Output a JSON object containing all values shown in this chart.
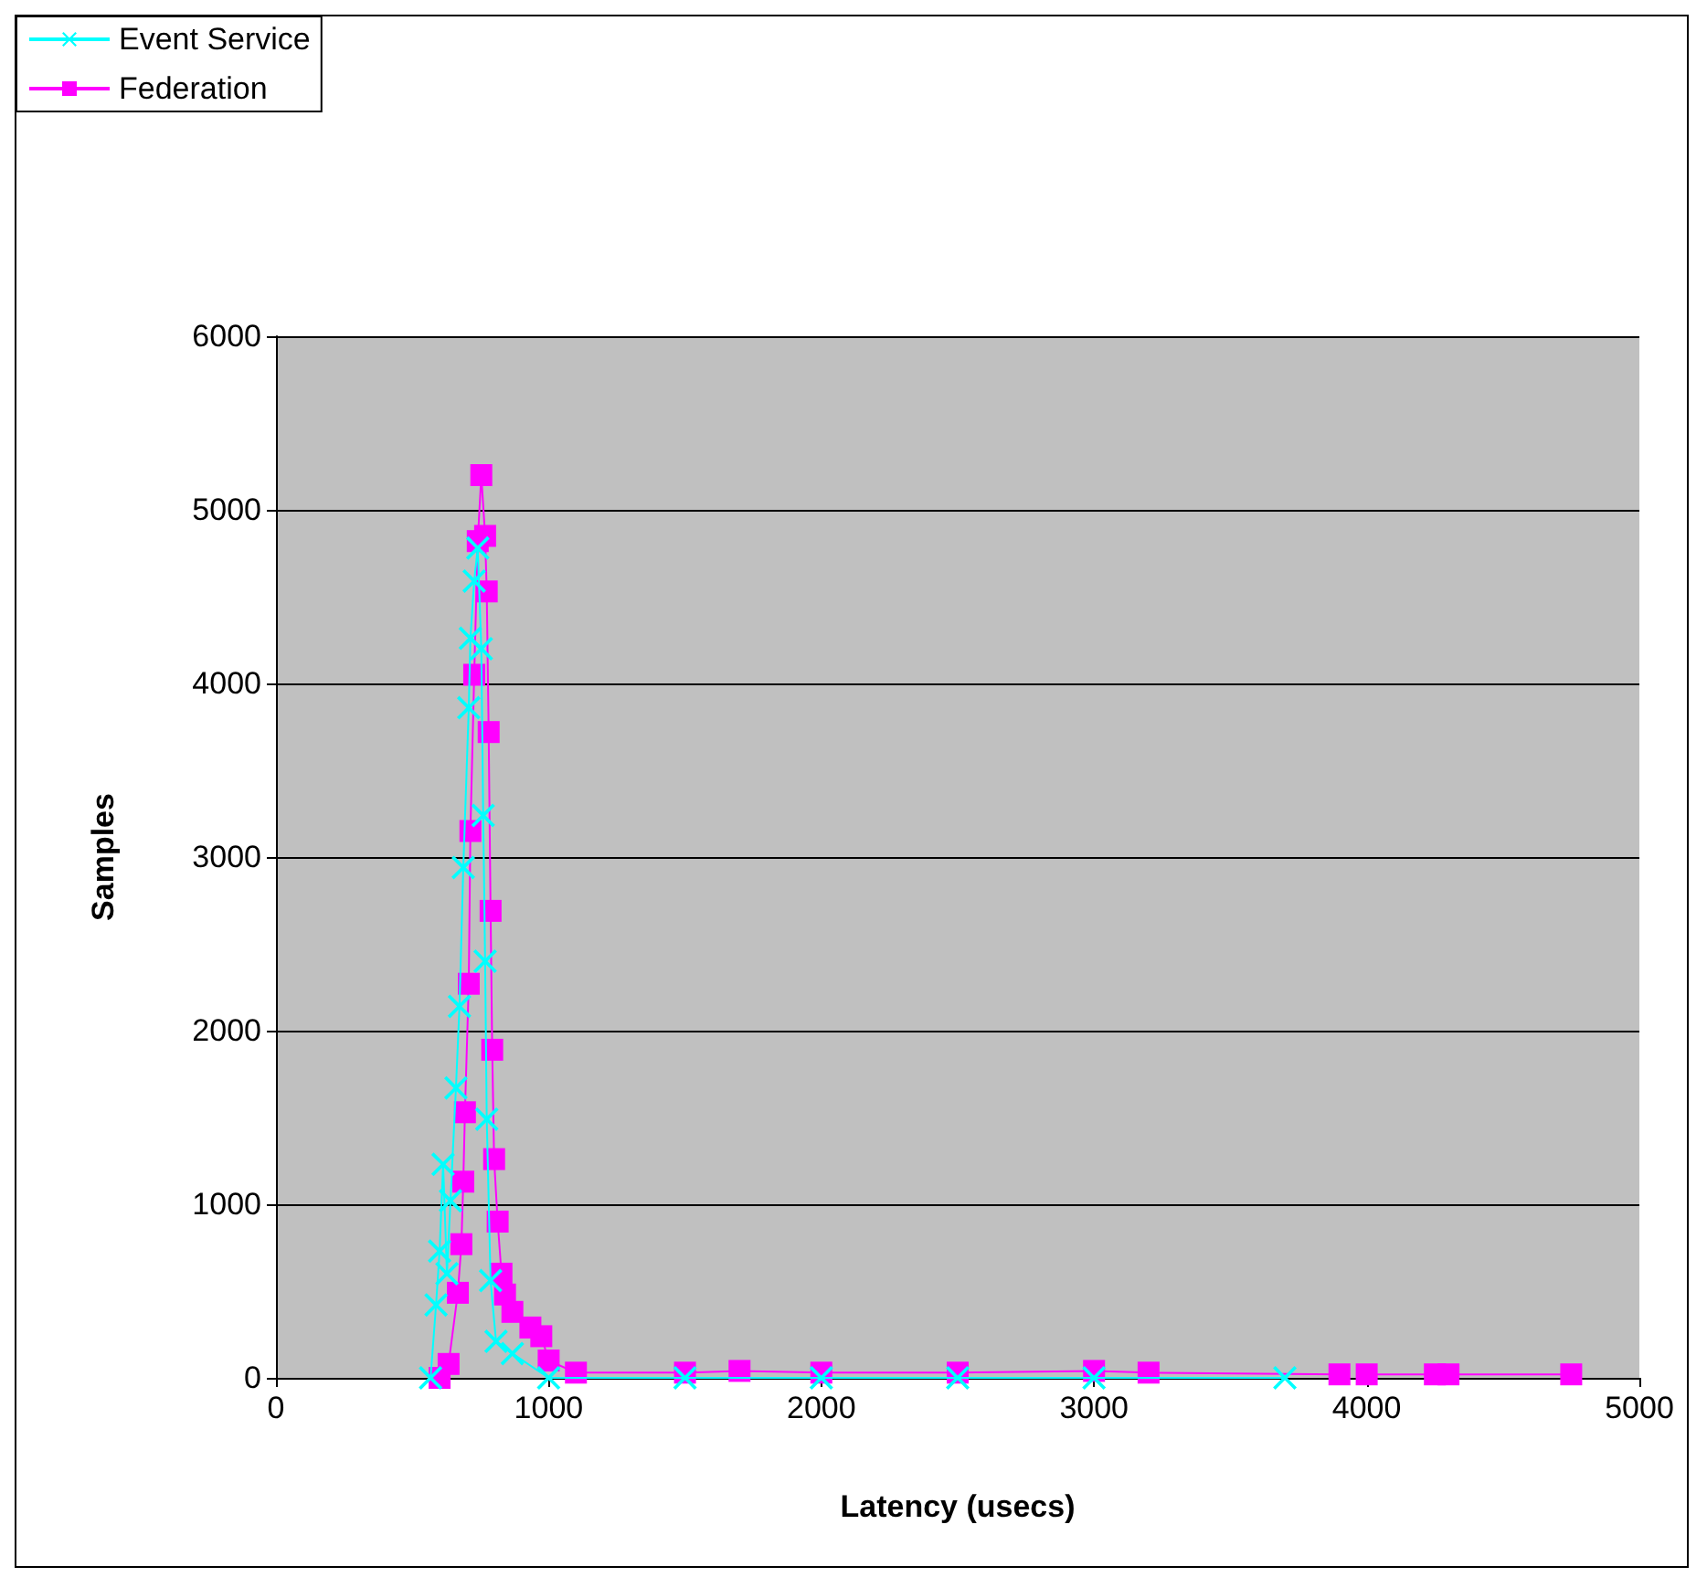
{
  "chart_data": {
    "type": "line",
    "xlabel": "Latency (usecs)",
    "ylabel": "Samples",
    "xlim": [
      0,
      5000
    ],
    "xticks": [
      0,
      1000,
      2000,
      3000,
      4000,
      5000
    ],
    "ylim": [
      0,
      6000
    ],
    "yticks": [
      0,
      1000,
      2000,
      3000,
      4000,
      5000,
      6000
    ],
    "grid": "y",
    "legend": "top left",
    "series": [
      {
        "name": "Event Service",
        "color": "#00ffff",
        "marker": "cross",
        "x": [
          567,
          587,
          600,
          613,
          627,
          640,
          660,
          673,
          687,
          707,
          713,
          727,
          740,
          753,
          760,
          767,
          773,
          787,
          807,
          867,
          1000,
          1500,
          2000,
          2500,
          3000,
          3700
        ],
        "values": [
          0,
          420,
          730,
          1230,
          600,
          1020,
          1670,
          2140,
          2940,
          3860,
          4260,
          4590,
          4780,
          4200,
          3240,
          2400,
          1490,
          560,
          210,
          140,
          0,
          0,
          0,
          0,
          0,
          0
        ]
      },
      {
        "name": "Federation",
        "color": "#ff00ff",
        "marker": "square",
        "x": [
          600,
          633,
          667,
          680,
          687,
          693,
          707,
          713,
          727,
          740,
          753,
          767,
          773,
          780,
          787,
          793,
          800,
          813,
          827,
          840,
          867,
          933,
          973,
          1000,
          1100,
          1500,
          1700,
          2000,
          2500,
          3000,
          3200,
          3900,
          3950,
          4000,
          4250,
          4280,
          4300,
          4750
        ],
        "values": [
          0,
          80,
          490,
          770,
          1130,
          1530,
          2270,
          3150,
          4050,
          4820,
          5200,
          4850,
          4530,
          3720,
          2690,
          1890,
          1260,
          900,
          600,
          480,
          380,
          290,
          240,
          100,
          30,
          30,
          40,
          30,
          30,
          40,
          30,
          20,
          null,
          20,
          20,
          null,
          20,
          20
        ]
      }
    ]
  }
}
